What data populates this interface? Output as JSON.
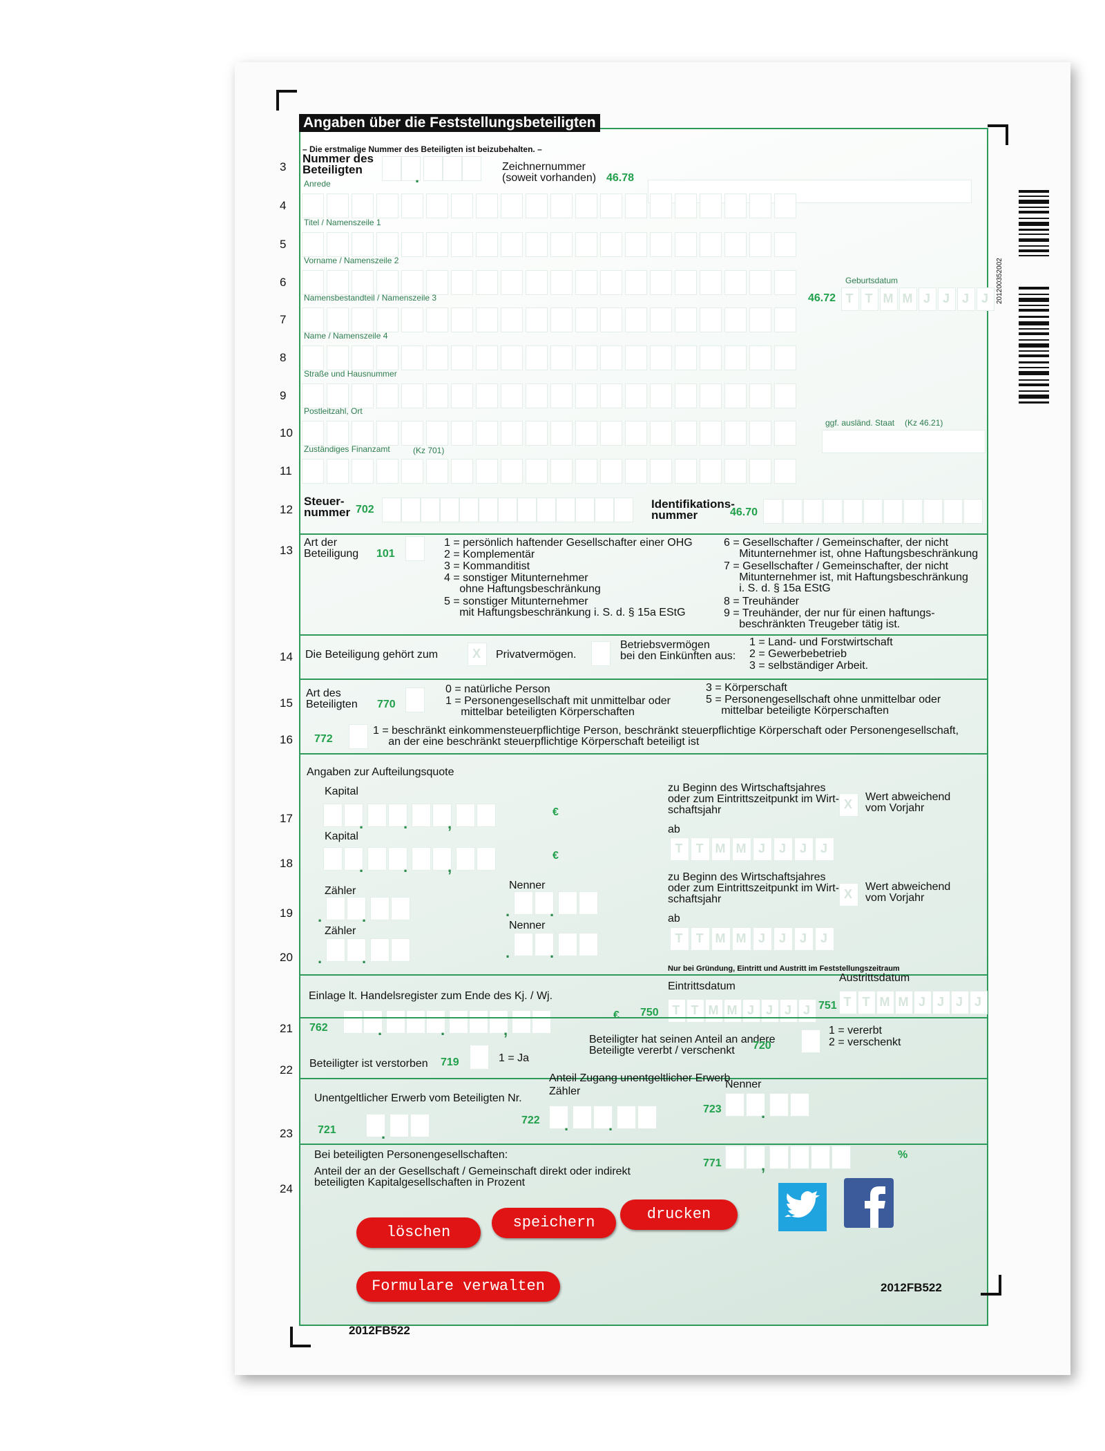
{
  "header": {
    "title": "Angaben über die Feststellungsbeteiligten",
    "note": "– Die erstmalige Nummer des Beteiligten ist beizubehalten. –"
  },
  "form_id": "2012FB522",
  "barcode_text": "201200352002",
  "row_numbers": [
    "3",
    "4",
    "5",
    "6",
    "7",
    "8",
    "9",
    "10",
    "11",
    "12",
    "13",
    "14",
    "15",
    "16",
    "17",
    "18",
    "19",
    "20",
    "21",
    "22",
    "23",
    "24"
  ],
  "separators": {
    "dot": ".",
    "comma": ","
  },
  "date_letters": [
    "T",
    "T",
    "M",
    "M",
    "J",
    "J",
    "J",
    "J"
  ],
  "rows": {
    "r3": {
      "label": "Nummer des\nBeteiligten",
      "zeichner": "Zeichnernummer\n(soweit vorhanden)",
      "code": "46.78"
    },
    "name_fields": [
      "Anrede",
      "Titel / Namenszeile 1",
      "Vorname / Namenszeile 2",
      "Namensbestandteil / Namenszeile 3",
      "Name / Namenszeile 4",
      "Straße und Hausnummer",
      "Postleitzahl, Ort",
      "Zuständiges Finanzamt"
    ],
    "birth": {
      "label": "Geburtsdatum",
      "code": "46.72"
    },
    "foreign": {
      "label": "ggf. ausländ. Staat",
      "code": "(Kz 46.21)"
    },
    "finanzamt_code": "(Kz 701)",
    "r12": {
      "label": "Steuer-\nnummer",
      "code": "702",
      "id_label": "Identifikations-\nnummer",
      "id_code": "46.70"
    },
    "r13": {
      "label": "Art der\nBeteiligung",
      "code": "101",
      "left": [
        "1 = persönlich haftender Gesellschafter einer OHG",
        "2 = Komplementär",
        "3 = Kommanditist",
        "4 = sonstiger Mitunternehmer\n     ohne Haftungsbeschränkung",
        "5 = sonstiger Mitunternehmer\n     mit Haftungsbeschränkung i. S. d. § 15a EStG"
      ],
      "right": [
        "6 = Gesellschafter / Gemeinschafter, der nicht\n     Mitunternehmer ist, ohne Haftungsbeschränkung",
        "7 = Gesellschafter / Gemeinschafter, der nicht\n     Mitunternehmer ist, mit Haftungsbeschränkung\n     i. S. d. § 15a EStG",
        "8 = Treuhänder",
        "9 = Treuhänder, der nur für einen haftungs-\n     beschränkten Treugeber tätig ist."
      ]
    },
    "r14": {
      "label": "Die Beteiligung gehört zum",
      "mark": "X",
      "private": "Privatvermögen.",
      "business": "Betriebsvermögen\nbei den Einkünften aus:",
      "options": [
        "1 = Land- und Forstwirtschaft",
        "2 = Gewerbebetrieb",
        "3 = selbständiger Arbeit."
      ]
    },
    "r15": {
      "label": "Art des\nBeteiligten",
      "code": "770",
      "left": [
        "0 = natürliche Person",
        "1 = Personengesellschaft mit unmittelbar oder\n     mittelbar beteiligten Körperschaften"
      ],
      "right": [
        "3 = Körperschaft",
        "5 = Personengesellschaft ohne unmittelbar oder\n     mittelbar beteiligte Körperschaften"
      ]
    },
    "r16": {
      "code": "772",
      "text": "1 = beschränkt einkommensteuerpflichtige Person, beschränkt steuerpflichtige Körperschaft oder Personengesellschaft,\n     an der eine beschränkt steuerpflichtige Körperschaft beteiligt ist"
    },
    "quota": {
      "title": "Angaben zur Aufteilungsquote",
      "capital": "Kapital",
      "euro": "€",
      "start": "zu Beginn des Wirtschaftsjahres\noder zum Eintrittszeitpunkt im Wirt-\nschaftsjahr",
      "mark": "X",
      "deviating": "Wert abweichend\nvom Vorjahr",
      "from": "ab",
      "numerator": "Zähler",
      "denominator": "Nenner"
    },
    "r21": {
      "note": "Nur bei Gründung, Eintritt und Austritt im Feststellungszeitraum",
      "entry": "Eintrittsdatum",
      "exit": "Austrittsdatum",
      "label": "Einlage lt. Handelsregister zum Ende des Kj. / Wj.",
      "code": "762",
      "euro": "€",
      "entry_code": "750",
      "exit_code": "751"
    },
    "r22": {
      "label": "Beteiligter ist verstorben",
      "code": "719",
      "yes": "1 = Ja",
      "transfer": "Beteiligter hat seinen Anteil an andere\nBeteiligte vererbt / verschenkt",
      "transfer_code": "720",
      "options": [
        "1 = vererbt",
        "2 = verschenkt"
      ]
    },
    "r23": {
      "label": "Unentgeltlicher Erwerb vom Beteiligten Nr.",
      "code": "721",
      "share": "Anteil Zugang unentgeltlicher Erwerb",
      "numerator": "Zähler",
      "num_code": "722",
      "denominator": "Nenner",
      "den_code": "723"
    },
    "r24": {
      "label": "Bei beteiligten Personengesellschaften:",
      "text": "Anteil der an der Gesellschaft / Gemeinschaft direkt oder indirekt\nbeteiligten Kapitalgesellschaften in Prozent",
      "code": "771",
      "percent": "%"
    }
  },
  "buttons": [
    "löschen",
    "speichern",
    "drucken",
    "Formulare verwalten"
  ]
}
